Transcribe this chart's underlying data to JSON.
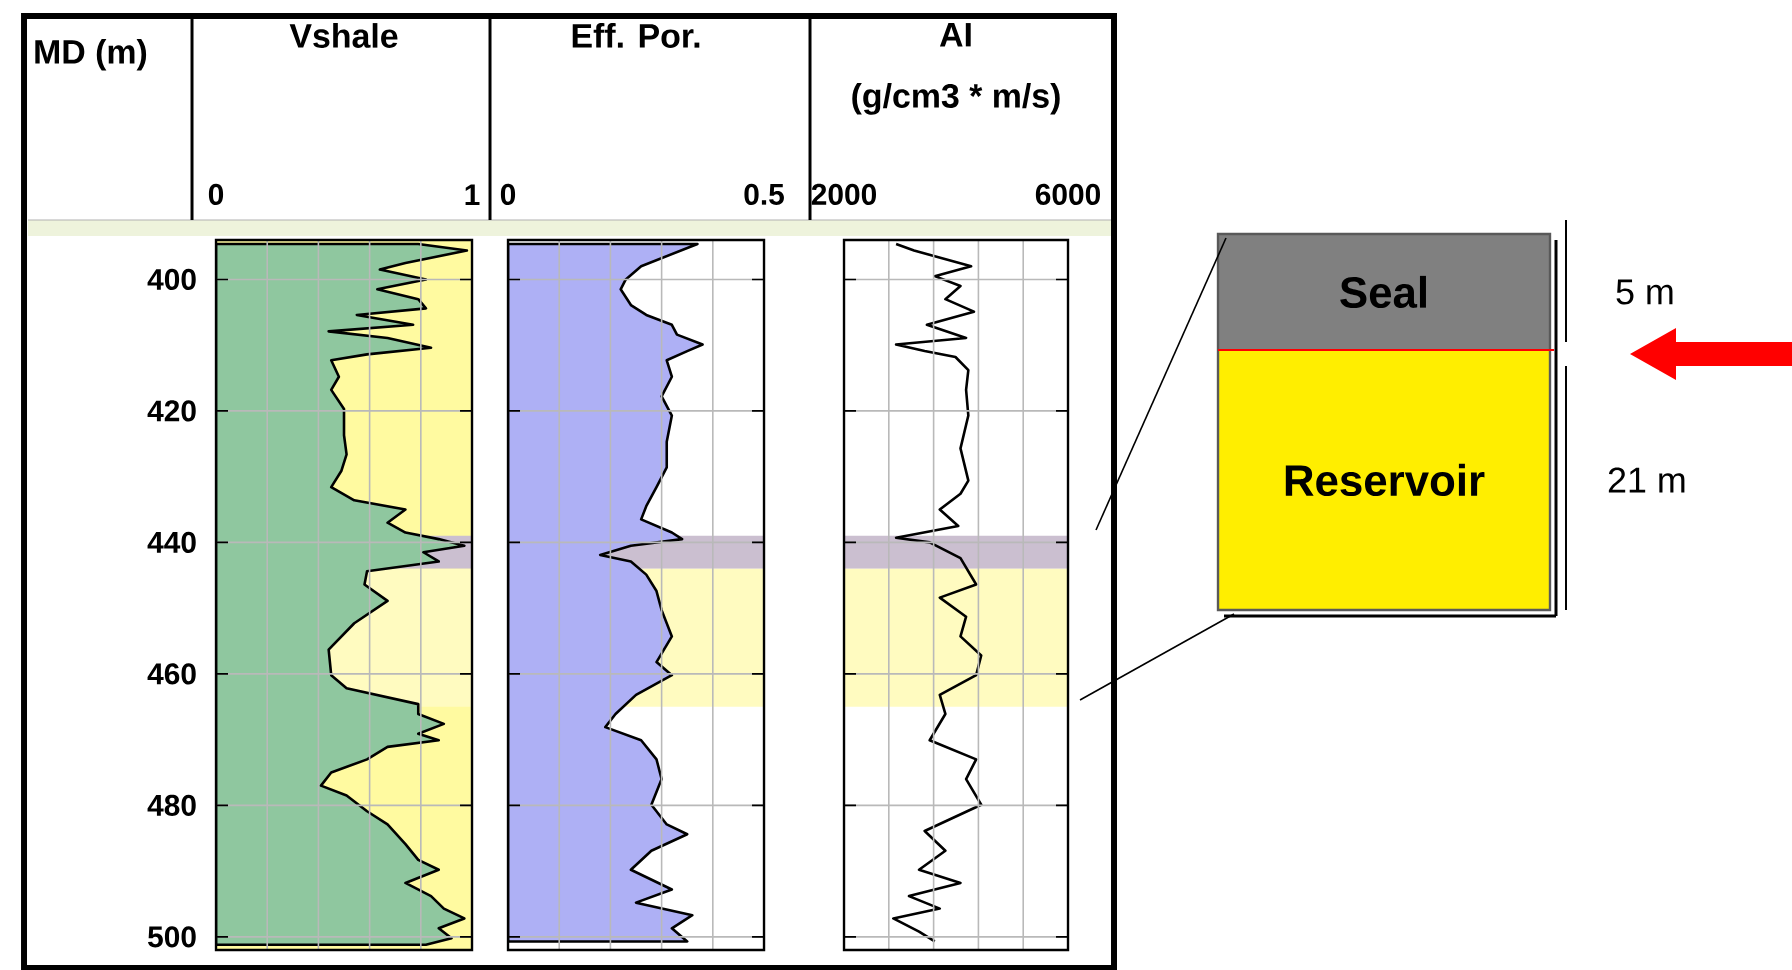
{
  "chart_data": [
    {
      "type": "area",
      "orientation": "horizontal",
      "title": "Vshale",
      "ylabel": "MD (m)",
      "xlim": [
        0,
        1
      ],
      "xticks": [
        0,
        {
          "value": 0.2,
          "label": null
        },
        {
          "value": 0.4,
          "label": null
        },
        {
          "value": 0.6,
          "label": null
        },
        {
          "value": 0.8,
          "label": null
        },
        1
      ],
      "ylim": [
        502,
        394
      ],
      "yticks": [
        400,
        420,
        440,
        460,
        480,
        500
      ],
      "grid": true,
      "bands": [
        {
          "axis": "x",
          "from": 0,
          "to": 1,
          "color": "#fffaa0"
        },
        {
          "axis": "y",
          "from": 439,
          "to": 444,
          "color": "#cbbfd0"
        },
        {
          "axis": "y",
          "from": 444,
          "to": 465,
          "color": "#fffbc0"
        }
      ],
      "series": [
        {
          "color": "#8fc79f",
          "values": [
            0.79,
            0.98,
            0.74,
            0.64,
            0.82,
            0.63,
            0.79,
            0.82,
            0.55,
            0.77,
            0.44,
            0.67,
            0.84,
            0.59,
            0.45,
            0.48,
            0.45,
            0.5,
            0.5,
            0.51,
            0.49,
            0.45,
            0.54,
            0.74,
            0.67,
            0.74,
            0.87,
            0.97,
            0.81,
            0.87,
            0.59,
            0.58,
            0.67,
            0.54,
            0.44,
            0.45,
            0.51,
            0.79,
            0.79,
            0.89,
            0.79,
            0.87,
            0.67,
            0.59,
            0.45,
            0.41,
            0.51,
            0.59,
            0.67,
            0.74,
            0.79,
            0.87,
            0.74,
            0.84,
            0.89,
            0.97,
            0.87,
            0.92,
            0.82
          ],
          "x": [
            394.6,
            395.6,
            397.5,
            398.5,
            400,
            401.5,
            403,
            404.4,
            405.4,
            406.9,
            407.9,
            408.9,
            410.4,
            411.4,
            412.3,
            414.8,
            416.8,
            419.7,
            423.7,
            426.6,
            429.1,
            431.6,
            433.6,
            435,
            437,
            438.5,
            439.5,
            440.5,
            441.5,
            442.9,
            444.4,
            446.4,
            448.9,
            452.3,
            456.3,
            460.2,
            462.2,
            464.6,
            466.1,
            467.6,
            469.1,
            470.1,
            471.1,
            473,
            475,
            477,
            478.5,
            480.9,
            482.9,
            485.9,
            488.3,
            489.8,
            491.8,
            493.8,
            495.7,
            497.2,
            498.7,
            500.2,
            501.2
          ]
        }
      ]
    },
    {
      "type": "area",
      "orientation": "horizontal",
      "title": "Eff. Por.",
      "xlim": [
        0,
        0.5
      ],
      "xticks": [
        0,
        {
          "value": 0.1,
          "label": null
        },
        {
          "value": 0.2,
          "label": null
        },
        {
          "value": 0.3,
          "label": null
        },
        {
          "value": 0.4,
          "label": null
        },
        0.5
      ],
      "ylim": [
        502,
        394
      ],
      "yticks": [
        400,
        420,
        440,
        460,
        480,
        500
      ],
      "grid": true,
      "tick_labels": "x",
      "bands": [
        {
          "axis": "y",
          "from": 439,
          "to": 444,
          "color": "#cbbfd0"
        },
        {
          "axis": "y",
          "from": 444,
          "to": 465,
          "color": "#fffbc0"
        }
      ],
      "series": [
        {
          "color": "#aeb0f5",
          "values": [
            0.37,
            0.26,
            0.23,
            0.22,
            0.24,
            0.27,
            0.32,
            0.33,
            0.38,
            0.35,
            0.31,
            0.32,
            0.3,
            0.32,
            0.31,
            0.31,
            0.29,
            0.27,
            0.26,
            0.32,
            0.34,
            0.24,
            0.18,
            0.24,
            0.27,
            0.29,
            0.3,
            0.32,
            0.29,
            0.32,
            0.25,
            0.21,
            0.19,
            0.26,
            0.29,
            0.3,
            0.28,
            0.31,
            0.35,
            0.28,
            0.24,
            0.32,
            0.25,
            0.36,
            0.32,
            0.35
          ],
          "x": [
            394.6,
            398,
            400,
            401.5,
            403.9,
            405.4,
            406.9,
            408.4,
            409.9,
            410.9,
            412.3,
            414.8,
            417.8,
            420.7,
            424.7,
            428.6,
            431.6,
            434.5,
            436.5,
            438.5,
            439.5,
            440.5,
            441.9,
            442.9,
            444.9,
            447.4,
            450.3,
            454.3,
            458.2,
            460.2,
            463.2,
            466.1,
            468.1,
            470.1,
            473,
            476,
            479.9,
            482.9,
            484.4,
            486.9,
            489.8,
            492.8,
            494.8,
            496.7,
            498.7,
            500.7
          ]
        }
      ]
    },
    {
      "type": "line",
      "orientation": "horizontal",
      "title": "AI",
      "xlabel": "(g/cm3 * m/s)",
      "xlim": [
        2000,
        6000
      ],
      "xticks": [
        2000,
        {
          "value": 2800,
          "label": null
        },
        {
          "value": 3600,
          "label": null
        },
        {
          "value": 4400,
          "label": null
        },
        {
          "value": 5200,
          "label": null
        },
        6000
      ],
      "ylim": [
        502,
        394
      ],
      "yticks": [
        400,
        420,
        440,
        460,
        480,
        500
      ],
      "grid": true,
      "tick_labels": "x",
      "bands": [
        {
          "axis": "y",
          "from": 439,
          "to": 444,
          "color": "#cbbfd0"
        },
        {
          "axis": "y",
          "from": 444,
          "to": 465,
          "color": "#fffbc0"
        }
      ],
      "annotations": [
        "Seal",
        "Reservoir",
        "5 m",
        "21 m"
      ],
      "series": [
        {
          "color": "#000000",
          "values": [
            2930,
            3250,
            4270,
            3620,
            4080,
            3810,
            4320,
            3480,
            4180,
            2930,
            3440,
            3990,
            4220,
            4180,
            4220,
            4080,
            4220,
            4080,
            3710,
            4040,
            2930,
            3530,
            4080,
            4360,
            3710,
            4180,
            4080,
            4450,
            4360,
            3710,
            3810,
            3530,
            4360,
            4180,
            4450,
            3440,
            3810,
            3340,
            4080,
            3160,
            3710,
            2880,
            3340,
            3620
          ],
          "x": [
            394.6,
            395.6,
            398,
            399.5,
            401,
            403,
            404.9,
            406.9,
            408.9,
            409.9,
            410.9,
            411.8,
            413.8,
            416.8,
            420.7,
            425.7,
            430.6,
            432.6,
            435,
            437.5,
            439.3,
            440,
            442.4,
            446.4,
            448.4,
            451.3,
            454.3,
            457.2,
            460.2,
            463.2,
            466.1,
            470.1,
            473,
            476,
            479.9,
            483.9,
            486.9,
            489.8,
            491.8,
            493.8,
            495.7,
            497.2,
            499.2,
            500.7
          ]
        }
      ]
    }
  ]
}
